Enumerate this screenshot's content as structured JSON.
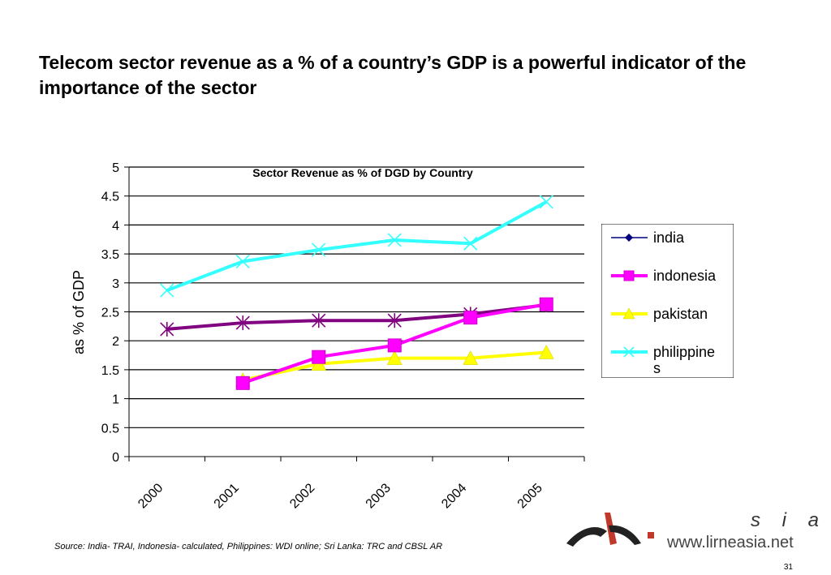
{
  "slide": {
    "title": "Telecom sector revenue as a % of a country’s GDP is a powerful indicator of the importance of the sector",
    "source": "Source: India- TRAI, Indonesia- calculated, Philippines: WDI online; Sri Lanka: TRC and CBSL AR",
    "page_number": "31"
  },
  "logo": {
    "letters": "s i a",
    "url": "www.lirneasia.net"
  },
  "chart_data": {
    "type": "line",
    "title": "Sector Revenue as % of DGD by Country",
    "xlabel": "",
    "ylabel": "as % of GDP",
    "categories": [
      "2000",
      "2001",
      "2002",
      "2003",
      "2004",
      "2005"
    ],
    "ylim": [
      0,
      5
    ],
    "yticks": [
      "0",
      "0.5",
      "1",
      "1.5",
      "2",
      "2.5",
      "3",
      "3.5",
      "4",
      "4.5",
      "5"
    ],
    "grid": true,
    "legend_position": "right",
    "series": [
      {
        "name": "india",
        "color": "#800080",
        "marker": "star",
        "values": [
          2.2,
          2.31,
          2.35,
          2.35,
          2.46,
          2.62
        ]
      },
      {
        "name": "indonesia",
        "color": "#ff00ff",
        "marker": "square",
        "values": [
          null,
          1.27,
          1.72,
          1.92,
          2.4,
          2.63
        ]
      },
      {
        "name": "pakistan",
        "color": "#ffff00",
        "marker": "triangle",
        "values": [
          null,
          1.32,
          1.6,
          1.7,
          1.7,
          1.8
        ]
      },
      {
        "name": "philippines",
        "color": "#33ffff",
        "marker": "x",
        "values": [
          2.87,
          3.37,
          3.57,
          3.74,
          3.68,
          4.4
        ]
      }
    ],
    "legend": {
      "entries": [
        "india",
        "indonesia",
        "pakistan",
        "philippine\ns"
      ],
      "colors": [
        "#000080",
        "#ff00ff",
        "#ffff00",
        "#33ffff"
      ],
      "markers": [
        "diamond",
        "square",
        "triangle",
        "x"
      ]
    }
  }
}
